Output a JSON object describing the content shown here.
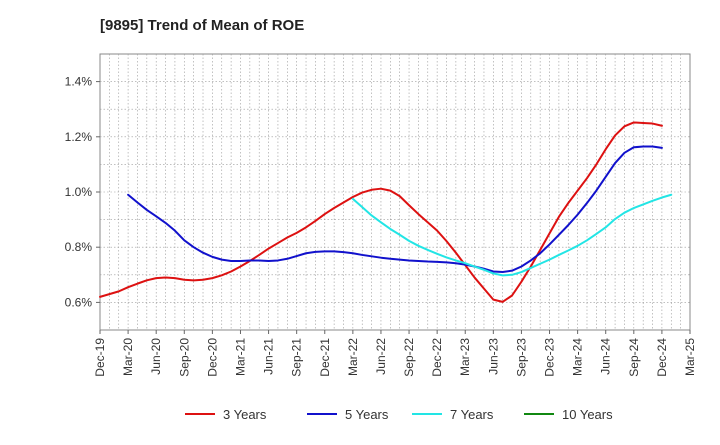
{
  "chart_data": {
    "type": "line",
    "title": "[9895]  Trend of Mean of ROE",
    "xlabel": "",
    "ylabel": "",
    "x_tick_labels": [
      "Dec-19",
      "Mar-20",
      "Jun-20",
      "Sep-20",
      "Dec-20",
      "Mar-21",
      "Jun-21",
      "Sep-21",
      "Dec-21",
      "Mar-22",
      "Jun-22",
      "Sep-22",
      "Dec-22",
      "Mar-23",
      "Jun-23",
      "Sep-23",
      "Dec-23",
      "Mar-24",
      "Jun-24",
      "Sep-24",
      "Dec-24",
      "Mar-25"
    ],
    "y_ticks": [
      0.6,
      0.8,
      1.0,
      1.2,
      1.4
    ],
    "y_tick_labels": [
      "0.6%",
      "0.8%",
      "1.0%",
      "1.2%",
      "1.4%"
    ],
    "ylim": [
      0.5,
      1.5
    ],
    "grid": true,
    "legend_position": "bottom",
    "series": [
      {
        "name": "3 Years",
        "color": "#dd1111",
        "points": [
          [
            "Dec-19",
            0.62
          ],
          [
            "Jan-20",
            0.63
          ],
          [
            "Feb-20",
            0.64
          ],
          [
            "Mar-20",
            0.655
          ],
          [
            "Apr-20",
            0.668
          ],
          [
            "May-20",
            0.68
          ],
          [
            "Jun-20",
            0.688
          ],
          [
            "Jul-20",
            0.69
          ],
          [
            "Aug-20",
            0.688
          ],
          [
            "Sep-20",
            0.682
          ],
          [
            "Oct-20",
            0.68
          ],
          [
            "Nov-20",
            0.682
          ],
          [
            "Dec-20",
            0.688
          ],
          [
            "Jan-21",
            0.698
          ],
          [
            "Feb-21",
            0.712
          ],
          [
            "Mar-21",
            0.73
          ],
          [
            "Apr-21",
            0.75
          ],
          [
            "May-21",
            0.772
          ],
          [
            "Jun-21",
            0.795
          ],
          [
            "Jul-21",
            0.815
          ],
          [
            "Aug-21",
            0.835
          ],
          [
            "Sep-21",
            0.852
          ],
          [
            "Oct-21",
            0.872
          ],
          [
            "Nov-21",
            0.895
          ],
          [
            "Dec-21",
            0.92
          ],
          [
            "Jan-22",
            0.942
          ],
          [
            "Feb-22",
            0.962
          ],
          [
            "Mar-22",
            0.982
          ],
          [
            "Apr-22",
            0.998
          ],
          [
            "May-22",
            1.008
          ],
          [
            "Jun-22",
            1.012
          ],
          [
            "Jul-22",
            1.005
          ],
          [
            "Aug-22",
            0.985
          ],
          [
            "Sep-22",
            0.952
          ],
          [
            "Oct-22",
            0.92
          ],
          [
            "Nov-22",
            0.89
          ],
          [
            "Dec-22",
            0.86
          ],
          [
            "Jan-23",
            0.822
          ],
          [
            "Feb-23",
            0.78
          ],
          [
            "Mar-23",
            0.735
          ],
          [
            "Apr-23",
            0.69
          ],
          [
            "May-23",
            0.65
          ],
          [
            "Jun-23",
            0.61
          ],
          [
            "Jul-23",
            0.602
          ],
          [
            "Aug-23",
            0.625
          ],
          [
            "Sep-23",
            0.675
          ],
          [
            "Oct-23",
            0.73
          ],
          [
            "Nov-23",
            0.79
          ],
          [
            "Dec-23",
            0.85
          ],
          [
            "Jan-24",
            0.91
          ],
          [
            "Feb-24",
            0.96
          ],
          [
            "Mar-24",
            1.005
          ],
          [
            "Apr-24",
            1.05
          ],
          [
            "May-24",
            1.1
          ],
          [
            "Jun-24",
            1.155
          ],
          [
            "Jul-24",
            1.205
          ],
          [
            "Aug-24",
            1.238
          ],
          [
            "Sep-24",
            1.252
          ],
          [
            "Oct-24",
            1.25
          ],
          [
            "Nov-24",
            1.248
          ],
          [
            "Dec-24",
            1.24
          ]
        ]
      },
      {
        "name": "5 Years",
        "color": "#1111cc",
        "points": [
          [
            "Mar-20",
            0.99
          ],
          [
            "Apr-20",
            0.962
          ],
          [
            "May-20",
            0.935
          ],
          [
            "Jun-20",
            0.912
          ],
          [
            "Jul-20",
            0.888
          ],
          [
            "Aug-20",
            0.86
          ],
          [
            "Sep-20",
            0.825
          ],
          [
            "Oct-20",
            0.8
          ],
          [
            "Nov-20",
            0.78
          ],
          [
            "Dec-20",
            0.765
          ],
          [
            "Jan-21",
            0.755
          ],
          [
            "Feb-21",
            0.75
          ],
          [
            "Mar-21",
            0.75
          ],
          [
            "Apr-21",
            0.752
          ],
          [
            "May-21",
            0.752
          ],
          [
            "Jun-21",
            0.75
          ],
          [
            "Jul-21",
            0.752
          ],
          [
            "Aug-21",
            0.758
          ],
          [
            "Sep-21",
            0.768
          ],
          [
            "Oct-21",
            0.778
          ],
          [
            "Nov-21",
            0.783
          ],
          [
            "Dec-21",
            0.785
          ],
          [
            "Jan-22",
            0.785
          ],
          [
            "Feb-22",
            0.782
          ],
          [
            "Mar-22",
            0.778
          ],
          [
            "Apr-22",
            0.772
          ],
          [
            "May-22",
            0.767
          ],
          [
            "Jun-22",
            0.762
          ],
          [
            "Jul-22",
            0.758
          ],
          [
            "Aug-22",
            0.755
          ],
          [
            "Sep-22",
            0.752
          ],
          [
            "Oct-22",
            0.75
          ],
          [
            "Nov-22",
            0.748
          ],
          [
            "Dec-22",
            0.747
          ],
          [
            "Jan-23",
            0.745
          ],
          [
            "Feb-23",
            0.742
          ],
          [
            "Mar-23",
            0.737
          ],
          [
            "Apr-23",
            0.73
          ],
          [
            "May-23",
            0.722
          ],
          [
            "Jun-23",
            0.712
          ],
          [
            "Jul-23",
            0.71
          ],
          [
            "Aug-23",
            0.715
          ],
          [
            "Sep-23",
            0.73
          ],
          [
            "Oct-23",
            0.752
          ],
          [
            "Nov-23",
            0.778
          ],
          [
            "Dec-23",
            0.81
          ],
          [
            "Jan-24",
            0.845
          ],
          [
            "Feb-24",
            0.88
          ],
          [
            "Mar-24",
            0.918
          ],
          [
            "Apr-24",
            0.96
          ],
          [
            "May-24",
            1.005
          ],
          [
            "Jun-24",
            1.055
          ],
          [
            "Jul-24",
            1.105
          ],
          [
            "Aug-24",
            1.142
          ],
          [
            "Sep-24",
            1.162
          ],
          [
            "Oct-24",
            1.165
          ],
          [
            "Nov-24",
            1.165
          ],
          [
            "Dec-24",
            1.16
          ]
        ]
      },
      {
        "name": "7 Years",
        "color": "#22e5e5",
        "points": [
          [
            "Mar-22",
            0.975
          ],
          [
            "Apr-22",
            0.945
          ],
          [
            "May-22",
            0.915
          ],
          [
            "Jun-22",
            0.89
          ],
          [
            "Jul-22",
            0.866
          ],
          [
            "Aug-22",
            0.845
          ],
          [
            "Sep-22",
            0.823
          ],
          [
            "Oct-22",
            0.805
          ],
          [
            "Nov-22",
            0.79
          ],
          [
            "Dec-22",
            0.776
          ],
          [
            "Jan-23",
            0.763
          ],
          [
            "Feb-23",
            0.752
          ],
          [
            "Mar-23",
            0.742
          ],
          [
            "Apr-23",
            0.73
          ],
          [
            "May-23",
            0.718
          ],
          [
            "Jun-23",
            0.705
          ],
          [
            "Jul-23",
            0.698
          ],
          [
            "Aug-23",
            0.7
          ],
          [
            "Sep-23",
            0.71
          ],
          [
            "Oct-23",
            0.725
          ],
          [
            "Nov-23",
            0.74
          ],
          [
            "Dec-23",
            0.755
          ],
          [
            "Jan-24",
            0.772
          ],
          [
            "Feb-24",
            0.788
          ],
          [
            "Mar-24",
            0.805
          ],
          [
            "Apr-24",
            0.825
          ],
          [
            "May-24",
            0.848
          ],
          [
            "Jun-24",
            0.872
          ],
          [
            "Jul-24",
            0.902
          ],
          [
            "Aug-24",
            0.925
          ],
          [
            "Sep-24",
            0.942
          ],
          [
            "Oct-24",
            0.955
          ],
          [
            "Nov-24",
            0.968
          ],
          [
            "Dec-24",
            0.98
          ],
          [
            "Jan-25",
            0.99
          ]
        ]
      },
      {
        "name": "10 Years",
        "color": "#118811",
        "points": []
      }
    ]
  }
}
